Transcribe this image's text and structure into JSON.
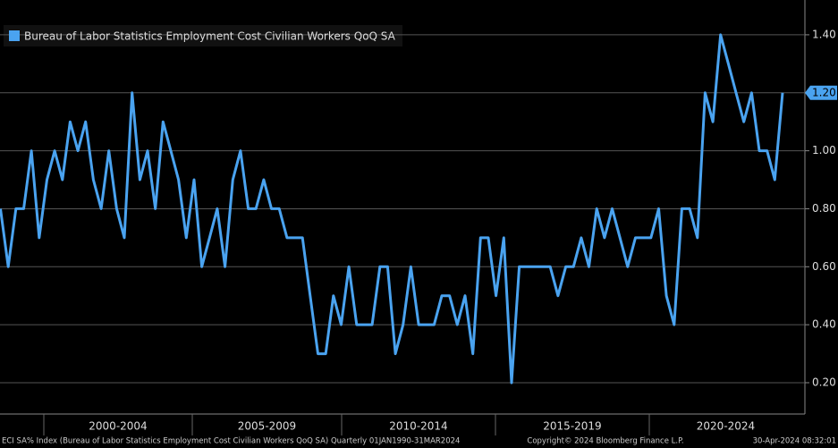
{
  "chart_data": {
    "type": "line",
    "legend": "Bureau of Labor Statistics Employment Cost Civilian Workers QoQ SA",
    "color": "#4aa3f0",
    "period_labels": [
      "2000-2004",
      "2005-2009",
      "2010-2014",
      "2015-2019",
      "2020-2024"
    ],
    "values": [
      0.8,
      0.6,
      0.8,
      0.8,
      1.0,
      0.7,
      0.9,
      1.0,
      0.9,
      1.1,
      1.0,
      1.1,
      0.9,
      0.8,
      1.0,
      0.8,
      0.7,
      1.2,
      0.9,
      1.0,
      0.8,
      1.1,
      1.0,
      0.9,
      0.7,
      0.9,
      0.6,
      0.7,
      0.8,
      0.6,
      0.9,
      1.0,
      0.8,
      0.8,
      0.9,
      0.8,
      0.8,
      0.7,
      0.7,
      0.7,
      0.5,
      0.3,
      0.3,
      0.5,
      0.4,
      0.6,
      0.4,
      0.4,
      0.4,
      0.6,
      0.6,
      0.3,
      0.4,
      0.6,
      0.4,
      0.4,
      0.4,
      0.5,
      0.5,
      0.4,
      0.5,
      0.3,
      0.7,
      0.7,
      0.5,
      0.7,
      0.2,
      0.6,
      0.6,
      0.6,
      0.6,
      0.6,
      0.5,
      0.6,
      0.6,
      0.7,
      0.6,
      0.8,
      0.7,
      0.8,
      0.7,
      0.6,
      0.7,
      0.7,
      0.7,
      0.8,
      0.5,
      0.4,
      0.8,
      0.8,
      0.7,
      1.2,
      1.1,
      1.4,
      1.3,
      1.2,
      1.1,
      1.2,
      1.0,
      1.0,
      0.9,
      1.2
    ],
    "last_value_label": "1.20",
    "ylim": [
      0.092,
      1.52
    ],
    "yticks": [
      {
        "value": 0.2,
        "label": "0.20"
      },
      {
        "value": 0.4,
        "label": "0.40"
      },
      {
        "value": 0.6,
        "label": "0.60"
      },
      {
        "value": 0.8,
        "label": "0.80"
      },
      {
        "value": 1.0,
        "label": "1.00"
      },
      {
        "value": 1.2,
        "label": "1.20"
      },
      {
        "value": 1.4,
        "label": "1.40"
      }
    ],
    "grid": true,
    "footer_left": "ECI SA% Index (Bureau of Labor Statistics Employment Cost Civilian Workers QoQ SA)  Quarterly 01JAN1990-31MAR2024",
    "footer_center": "Copyright© 2024 Bloomberg Finance L.P.",
    "footer_right": "30-Apr-2024 08:32:01"
  }
}
